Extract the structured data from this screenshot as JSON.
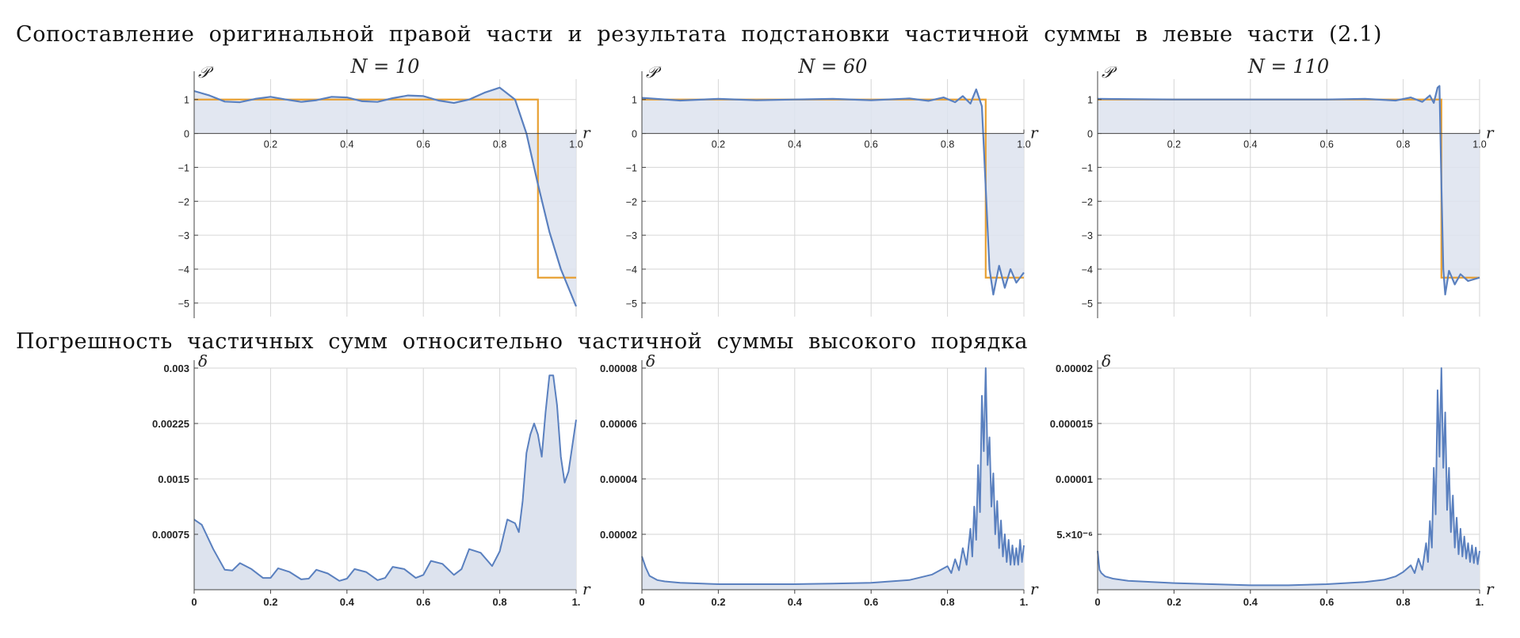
{
  "headings": {
    "top": "Сопоставление оригинальной правой части и результата подстановки частичной суммы в левые части (2.1)",
    "bottom": "Погрешность частичных сумм относительно частичной суммы высокого порядка"
  },
  "colors": {
    "approximation": "#5a80bf",
    "original": "#e8a033",
    "fill": "#dde3ee",
    "grid": "#d6d6d6"
  },
  "chart_data": [
    {
      "type": "line",
      "title": "N = 10",
      "xlabel": "r",
      "ylabel": "𝒫",
      "xlim": [
        0,
        1
      ],
      "ylim": [
        -5.4,
        1.6
      ],
      "x_ticks": [
        0.2,
        0.4,
        0.6,
        0.8,
        1.0
      ],
      "x_tick_labels": [
        "0.2",
        "0.4",
        "0.6",
        "0.8",
        "1.0"
      ],
      "y_ticks": [
        1,
        0,
        -1,
        -2,
        -3,
        -4,
        -5
      ],
      "y_tick_labels": [
        "1",
        "0",
        "−1",
        "−2",
        "−3",
        "−4",
        "−5"
      ],
      "grid": true,
      "series": [
        {
          "role": "partial-sum",
          "x": [
            0.0,
            0.04,
            0.08,
            0.12,
            0.16,
            0.2,
            0.24,
            0.28,
            0.32,
            0.36,
            0.4,
            0.44,
            0.48,
            0.52,
            0.56,
            0.6,
            0.64,
            0.68,
            0.72,
            0.76,
            0.8,
            0.84,
            0.87,
            0.9,
            0.93,
            0.96,
            1.0
          ],
          "y": [
            1.25,
            1.12,
            0.94,
            0.92,
            1.02,
            1.08,
            1.0,
            0.93,
            0.98,
            1.08,
            1.06,
            0.95,
            0.93,
            1.04,
            1.12,
            1.1,
            0.97,
            0.9,
            1.0,
            1.2,
            1.35,
            1.0,
            0.0,
            -1.5,
            -2.9,
            -4.0,
            -5.1
          ]
        },
        {
          "role": "original",
          "step_at": 0.9,
          "y_before": 1.0,
          "y_after": -4.25
        }
      ]
    },
    {
      "type": "line",
      "title": "N = 60",
      "xlabel": "r",
      "ylabel": "𝒫",
      "xlim": [
        0,
        1
      ],
      "ylim": [
        -5.4,
        1.6
      ],
      "x_ticks": [
        0.2,
        0.4,
        0.6,
        0.8,
        1.0
      ],
      "x_tick_labels": [
        "0.2",
        "0.4",
        "0.6",
        "0.8",
        "1.0"
      ],
      "y_ticks": [
        1,
        0,
        -1,
        -2,
        -3,
        -4,
        -5
      ],
      "y_tick_labels": [
        "1",
        "0",
        "−1",
        "−2",
        "−3",
        "−4",
        "−5"
      ],
      "grid": true,
      "series": [
        {
          "role": "partial-sum",
          "x": [
            0.0,
            0.1,
            0.2,
            0.3,
            0.4,
            0.5,
            0.6,
            0.7,
            0.75,
            0.79,
            0.82,
            0.84,
            0.86,
            0.875,
            0.89,
            0.9,
            0.91,
            0.92,
            0.935,
            0.95,
            0.965,
            0.98,
            1.0
          ],
          "y": [
            1.05,
            0.97,
            1.02,
            0.98,
            1.0,
            1.02,
            0.98,
            1.03,
            0.96,
            1.06,
            0.92,
            1.1,
            0.88,
            1.3,
            0.8,
            -1.6,
            -4.0,
            -4.75,
            -3.9,
            -4.55,
            -4.0,
            -4.4,
            -4.1
          ]
        },
        {
          "role": "original",
          "step_at": 0.9,
          "y_before": 1.0,
          "y_after": -4.25
        }
      ]
    },
    {
      "type": "line",
      "title": "N = 110",
      "xlabel": "r",
      "ylabel": "𝒫",
      "xlim": [
        0,
        1
      ],
      "ylim": [
        -5.4,
        1.6
      ],
      "x_ticks": [
        0.2,
        0.4,
        0.6,
        0.8,
        1.0
      ],
      "x_tick_labels": [
        "0.2",
        "0.4",
        "0.6",
        "0.8",
        "1.0"
      ],
      "y_ticks": [
        1,
        0,
        -1,
        -2,
        -3,
        -4,
        -5
      ],
      "y_tick_labels": [
        "1",
        "0",
        "−1",
        "−2",
        "−3",
        "−4",
        "−5"
      ],
      "grid": true,
      "series": [
        {
          "role": "partial-sum",
          "x": [
            0.0,
            0.2,
            0.4,
            0.6,
            0.7,
            0.78,
            0.82,
            0.85,
            0.87,
            0.88,
            0.89,
            0.895,
            0.9,
            0.905,
            0.91,
            0.92,
            0.935,
            0.95,
            0.97,
            1.0
          ],
          "y": [
            1.02,
            1.0,
            1.0,
            1.0,
            1.02,
            0.97,
            1.06,
            0.93,
            1.12,
            0.9,
            1.35,
            1.4,
            -1.5,
            -4.0,
            -4.75,
            -4.05,
            -4.45,
            -4.15,
            -4.35,
            -4.25
          ]
        },
        {
          "role": "original",
          "step_at": 0.9,
          "y_before": 1.0,
          "y_after": -4.25
        }
      ]
    },
    {
      "type": "area",
      "xlabel": "r",
      "ylabel": "δ",
      "xlim": [
        0,
        1
      ],
      "ylim": [
        0,
        0.003
      ],
      "x_ticks": [
        0,
        0.2,
        0.4,
        0.6,
        0.8,
        1.0
      ],
      "x_tick_labels": [
        "0",
        "0.2",
        "0.4",
        "0.6",
        "0.8",
        "1."
      ],
      "y_ticks": [
        0.00075,
        0.0015,
        0.00225,
        0.003
      ],
      "y_tick_labels": [
        "0.00075",
        "0.0015",
        "0.00225",
        "0.003"
      ],
      "grid": true,
      "series": [
        {
          "role": "error",
          "x": [
            0.0,
            0.02,
            0.05,
            0.08,
            0.1,
            0.12,
            0.15,
            0.18,
            0.2,
            0.22,
            0.25,
            0.28,
            0.3,
            0.32,
            0.35,
            0.38,
            0.4,
            0.42,
            0.45,
            0.48,
            0.5,
            0.52,
            0.55,
            0.58,
            0.6,
            0.62,
            0.65,
            0.68,
            0.7,
            0.72,
            0.75,
            0.78,
            0.8,
            0.82,
            0.84,
            0.85,
            0.86,
            0.87,
            0.88,
            0.89,
            0.9,
            0.91,
            0.92,
            0.93,
            0.94,
            0.95,
            0.96,
            0.97,
            0.98,
            1.0
          ],
          "y": [
            0.00095,
            0.00088,
            0.00055,
            0.00027,
            0.00026,
            0.00036,
            0.00028,
            0.00016,
            0.00016,
            0.00029,
            0.00024,
            0.00014,
            0.00015,
            0.00027,
            0.00022,
            0.00012,
            0.00015,
            0.00028,
            0.00024,
            0.00013,
            0.00016,
            0.00031,
            0.00028,
            0.00016,
            0.0002,
            0.00039,
            0.00035,
            0.0002,
            0.00028,
            0.00055,
            0.0005,
            0.00032,
            0.00052,
            0.00095,
            0.0009,
            0.00078,
            0.0012,
            0.00185,
            0.0021,
            0.00225,
            0.0021,
            0.0018,
            0.0024,
            0.0029,
            0.0029,
            0.0025,
            0.0018,
            0.00145,
            0.0016,
            0.0023
          ]
        }
      ]
    },
    {
      "type": "area",
      "xlabel": "r",
      "ylabel": "δ",
      "xlim": [
        0,
        1
      ],
      "ylim": [
        0,
        8e-05
      ],
      "x_ticks": [
        0,
        0.2,
        0.4,
        0.6,
        0.8,
        1.0
      ],
      "x_tick_labels": [
        "0",
        "0.2",
        "0.4",
        "0.6",
        "0.8",
        "1."
      ],
      "y_ticks": [
        2e-05,
        4e-05,
        6e-05,
        8e-05
      ],
      "y_tick_labels": [
        "0.00002",
        "0.00004",
        "0.00006",
        "0.00008"
      ],
      "grid": true,
      "series": [
        {
          "role": "error",
          "x": [
            0.0,
            0.01,
            0.02,
            0.04,
            0.06,
            0.1,
            0.2,
            0.3,
            0.4,
            0.5,
            0.6,
            0.65,
            0.7,
            0.73,
            0.76,
            0.78,
            0.8,
            0.81,
            0.82,
            0.83,
            0.84,
            0.85,
            0.86,
            0.865,
            0.87,
            0.875,
            0.88,
            0.885,
            0.89,
            0.895,
            0.9,
            0.905,
            0.91,
            0.915,
            0.92,
            0.925,
            0.93,
            0.935,
            0.94,
            0.945,
            0.95,
            0.955,
            0.96,
            0.965,
            0.97,
            0.975,
            0.98,
            0.985,
            0.99,
            0.995,
            1.0
          ],
          "y": [
            1.2e-05,
            8e-06,
            5e-06,
            3.5e-06,
            3e-06,
            2.5e-06,
            2e-06,
            2e-06,
            2e-06,
            2.2e-06,
            2.5e-06,
            3e-06,
            3.5e-06,
            4.5e-06,
            5.5e-06,
            7e-06,
            8.5e-06,
            6e-06,
            1.1e-05,
            7e-06,
            1.5e-05,
            9e-06,
            2.2e-05,
            1.2e-05,
            3e-05,
            1.8e-05,
            4.5e-05,
            2.8e-05,
            7e-05,
            5e-05,
            8e-05,
            4.5e-05,
            5.5e-05,
            3e-05,
            4.2e-05,
            2e-05,
            3.2e-05,
            1.5e-05,
            2.5e-05,
            1.2e-05,
            2e-05,
            1e-05,
            1.8e-05,
            9e-06,
            1.6e-05,
            9e-06,
            1.5e-05,
            9e-06,
            1.8e-05,
            1e-05,
            1.6e-05
          ]
        }
      ]
    },
    {
      "type": "area",
      "xlabel": "r",
      "ylabel": "δ",
      "xlim": [
        0,
        1
      ],
      "ylim": [
        0,
        2e-05
      ],
      "x_ticks": [
        0,
        0.2,
        0.4,
        0.6,
        0.8,
        1.0
      ],
      "x_tick_labels": [
        "0",
        "0.2",
        "0.4",
        "0.6",
        "0.8",
        "1."
      ],
      "y_ticks": [
        5e-06,
        1e-05,
        1.5e-05,
        2e-05
      ],
      "y_tick_labels": [
        "5.×10⁻⁶",
        "0.00001",
        "0.000015",
        "0.00002"
      ],
      "grid": true,
      "series": [
        {
          "role": "error",
          "x": [
            0.0,
            0.005,
            0.01,
            0.02,
            0.04,
            0.08,
            0.2,
            0.3,
            0.4,
            0.5,
            0.6,
            0.7,
            0.75,
            0.78,
            0.8,
            0.82,
            0.83,
            0.84,
            0.85,
            0.86,
            0.865,
            0.87,
            0.875,
            0.88,
            0.885,
            0.89,
            0.895,
            0.9,
            0.905,
            0.91,
            0.915,
            0.92,
            0.925,
            0.93,
            0.935,
            0.94,
            0.945,
            0.95,
            0.955,
            0.96,
            0.965,
            0.97,
            0.975,
            0.98,
            0.985,
            0.99,
            0.995,
            1.0
          ],
          "y": [
            3.5e-06,
            1.8e-06,
            1.5e-06,
            1.2e-06,
            1e-06,
            8e-07,
            6e-07,
            5e-07,
            4e-07,
            4e-07,
            5e-07,
            7e-07,
            9e-07,
            1.2e-06,
            1.6e-06,
            2.2e-06,
            1.5e-06,
            2.8e-06,
            1.8e-06,
            4.2e-06,
            2.5e-06,
            6.2e-06,
            3.8e-06,
            1.1e-05,
            6.8e-06,
            1.8e-05,
            1.2e-05,
            2e-05,
            1.1e-05,
            1.6e-05,
            7.2e-06,
            1.1e-05,
            5.2e-06,
            8.5e-06,
            3.8e-06,
            6.5e-06,
            3.2e-06,
            5.5e-06,
            3e-06,
            4.8e-06,
            2.8e-06,
            4.2e-06,
            2.5e-06,
            4e-06,
            2.4e-06,
            3.8e-06,
            2.3e-06,
            3.5e-06
          ]
        }
      ]
    }
  ]
}
